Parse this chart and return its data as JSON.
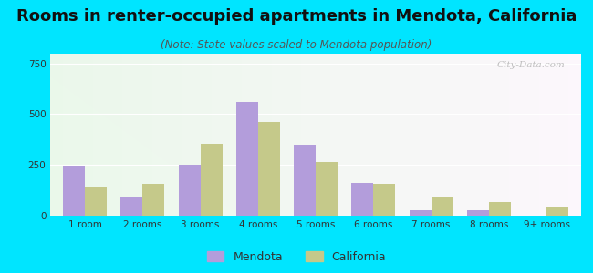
{
  "title": "Rooms in renter-occupied apartments in Mendota, California",
  "subtitle": "(Note: State values scaled to Mendota population)",
  "categories": [
    "1 room",
    "2 rooms",
    "3 rooms",
    "4 rooms",
    "5 rooms",
    "6 rooms",
    "7 rooms",
    "8 rooms",
    "9+ rooms"
  ],
  "mendota_values": [
    248,
    90,
    253,
    560,
    350,
    160,
    28,
    28,
    0
  ],
  "california_values": [
    145,
    155,
    355,
    460,
    263,
    158,
    95,
    68,
    45
  ],
  "mendota_color": "#b39ddb",
  "california_color": "#c5c98a",
  "background_outer": "#00e5ff",
  "ylim": [
    0,
    800
  ],
  "yticks": [
    0,
    250,
    500,
    750
  ],
  "bar_width": 0.38,
  "title_fontsize": 13,
  "subtitle_fontsize": 8.5,
  "tick_fontsize": 7.5,
  "legend_fontsize": 9,
  "watermark_text": "City-Data.com"
}
